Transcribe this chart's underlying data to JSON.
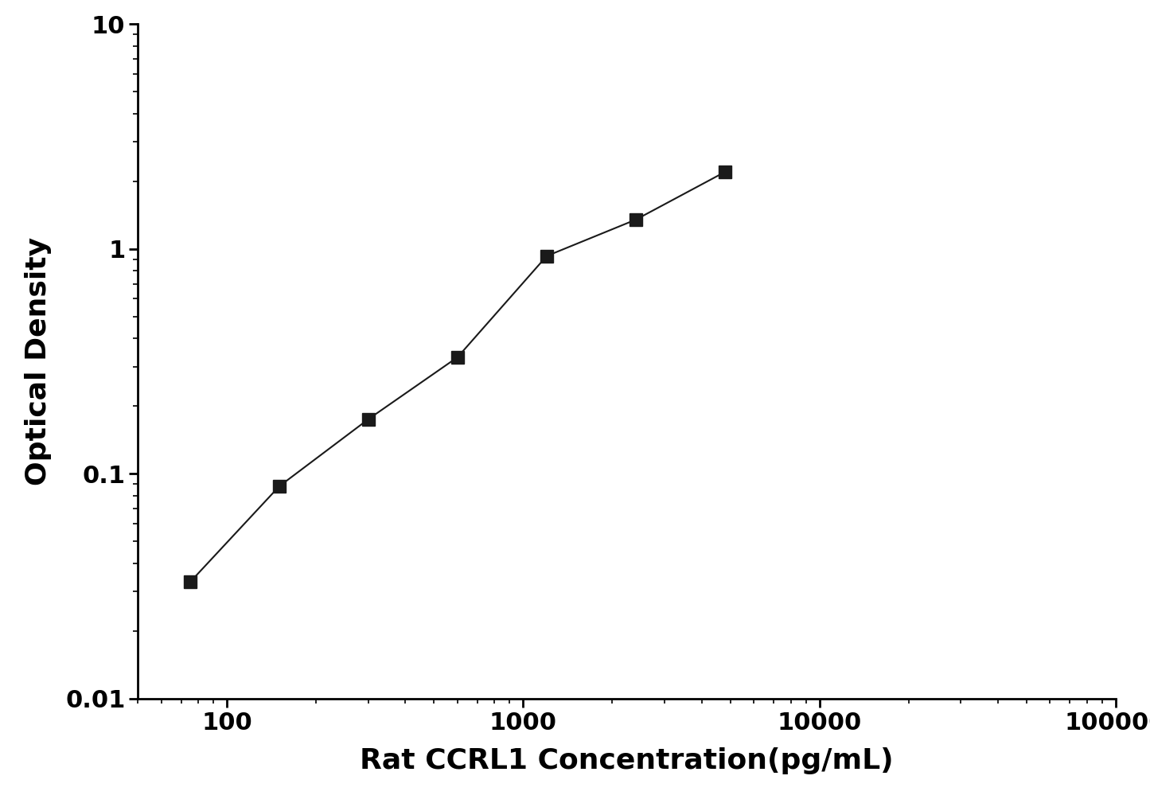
{
  "x": [
    75,
    150,
    300,
    600,
    1200,
    2400,
    4800
  ],
  "y": [
    0.033,
    0.088,
    0.175,
    0.33,
    0.93,
    1.35,
    2.2
  ],
  "xlabel": "Rat CCRL1 Concentration(pg/mL)",
  "ylabel": "Optical Density",
  "xlim": [
    50,
    100000
  ],
  "ylim": [
    0.01,
    10
  ],
  "marker": "s",
  "marker_color": "#1a1a1a",
  "line_color": "#1a1a1a",
  "marker_size": 11,
  "line_width": 1.5,
  "background_color": "#ffffff",
  "xlabel_fontsize": 26,
  "ylabel_fontsize": 26,
  "tick_fontsize": 22,
  "tick_label_fontweight": "bold",
  "axis_label_fontweight": "bold"
}
